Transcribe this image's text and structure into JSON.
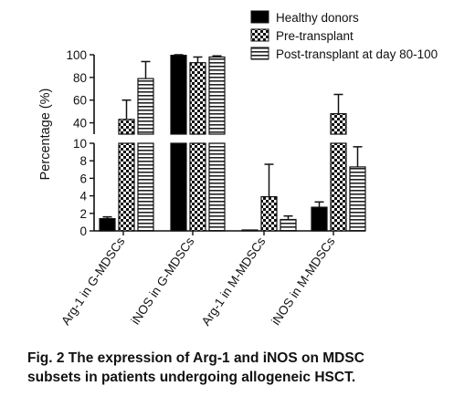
{
  "chart_data": {
    "type": "bar",
    "ylabel": "Percentage (%)",
    "y_axis": {
      "broken": true,
      "lower_segment": {
        "range": [
          0,
          10
        ],
        "ticks": [
          0,
          2,
          4,
          6,
          8,
          10
        ]
      },
      "upper_segment": {
        "range": [
          30,
          100
        ],
        "ticks": [
          40,
          60,
          80,
          100
        ]
      }
    },
    "categories": [
      "Arg-1 in  G-MDSCs",
      "iNOS in G-MDSCs",
      "Arg-1 in M-MDSCs",
      "iNOS in M-MDSCs"
    ],
    "series": [
      {
        "name": "Healthy donors",
        "pattern": "solid",
        "color": "#000000",
        "values": [
          1.4,
          99.5,
          0.1,
          2.7
        ],
        "error_upper": [
          1.6,
          100,
          0.1,
          3.3
        ]
      },
      {
        "name": "Pre-transplant",
        "pattern": "checker",
        "color": "#000000",
        "values": [
          43,
          93,
          3.9,
          48
        ],
        "error_upper": [
          60,
          98,
          7.6,
          65
        ]
      },
      {
        "name": "Post-transplant at day 80-100",
        "pattern": "horizontal-lines",
        "color": "#000000",
        "values": [
          79,
          98,
          1.3,
          7.3
        ],
        "error_upper": [
          94,
          99,
          1.7,
          9.6
        ]
      }
    ],
    "legend_position": "top-right",
    "grid": false
  },
  "caption": {
    "line1": "Fig. 2 The expression of Arg-1 and iNOS on MDSC",
    "line2": "subsets in patients undergoing allogeneic HSCT."
  }
}
